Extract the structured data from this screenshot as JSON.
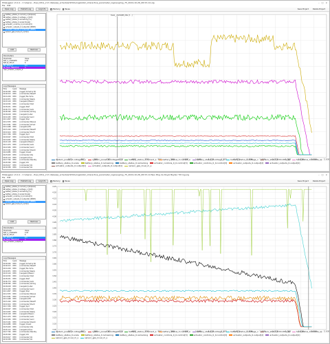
{
  "window1": {
    "title": "PlotJuggler v3.4.1 - C:\\Users\\...\\fuel_Ultra_2.0 \\ Release_scheduler\\PX4\\ulogs\\QGC_interactive_parameter_logs\\Log\\log_75_2024-10-26_08-53-14.ulg",
    "menus": [
      "File",
      "Edit"
    ],
    "toolbar": {
      "open_log": "Open Log",
      "publish_log": "Publish Log",
      "log_info": "Log Info",
      "memory": "Memory",
      "pause": "Pause",
      "save_project": "Save Project",
      "delete_project": "Delete Project"
    },
    "topics": [
      "battery_status_0.current_a [Ampere]",
      "battery_status_0.voltage_v [Volt]",
      "battery_status_0.remaining [%]",
      "battery_status_0.scale [Scale]",
      "actuator_controls_0_0.control[3]",
      "actuator_outputs_0.output[1] [PWM]",
      "actuator_outputs_0.output[2] [PWM]",
      "sensor_gps_0.vel_m_s [m/s]"
    ],
    "selected_topic_index": 6,
    "add_label": "Add",
    "remove_label": "Remove",
    "params_title": "Parameters",
    "params_header": [
      "Parameter",
      "Value"
    ],
    "params": [
      {
        "name": "BAT_V_CHARGED",
        "value": "4.05",
        "color": "#ffffff"
      },
      {
        "name": "BAT_N_CELLS",
        "value": "6",
        "color": "#ffffff"
      },
      {
        "name": "MC_PITCH_P",
        "value": "6.5",
        "color": "#2196f3"
      },
      {
        "name": "RC_MAP_THROTTLE",
        "value": "3",
        "color": "#a020f0"
      },
      {
        "name": "user_actuator_outputs_0",
        "value": "",
        "color": "#ffffff"
      }
    ],
    "logs_title": "Log Messages",
    "logs_header": [
      "Time",
      "Level",
      "Message"
    ],
    "logs": [
      [
        "00:00.000",
        "INFO",
        "[logger] Armed by RC"
      ],
      [
        "00:00.513",
        "INFO",
        "[commander] Takeoff"
      ],
      [
        "00:01.204",
        "INFO",
        "[logger] file: fs/ms"
      ],
      [
        "00:02.871",
        "INFO",
        "[commander] Ready"
      ],
      [
        "00:03.119",
        "INFO",
        "[navigator] Mission"
      ],
      [
        "00:04.552",
        "INFO",
        "[commander] Hold"
      ],
      [
        "00:05.031",
        "INFO",
        "[logger] Start"
      ],
      [
        "00:06.774",
        "INFO",
        "[commander] Auto"
      ],
      [
        "00:08.390",
        "INFO",
        "[commander] Arming"
      ],
      [
        "00:09.018",
        "INFO",
        "[navigator] Loiter"
      ],
      [
        "00:10.245",
        "INFO",
        "[commander] Land"
      ],
      [
        "00:11.807",
        "INFO",
        "[logger] Stop"
      ],
      [
        "00:12.553",
        "INFO",
        "[commander] Manual"
      ],
      [
        "00:13.061",
        "INFO",
        "[commander] Armed"
      ],
      [
        "00:14.498",
        "INFO",
        "[navigator] RTL"
      ],
      [
        "00:15.220",
        "INFO",
        "[commander] Takeoff"
      ],
      [
        "00:16.914",
        "INFO",
        "[commander] Posctl"
      ],
      [
        "00:17.336",
        "INFO",
        "[logger] Sync"
      ],
      [
        "00:18.007",
        "INFO",
        "[commander] Hold"
      ],
      [
        "00:19.652",
        "INFO",
        "[commander] Ready"
      ],
      [
        "00:20.118",
        "INFO",
        "[navigator] Mission"
      ],
      [
        "00:21.470",
        "INFO",
        "[commander] Auto"
      ],
      [
        "00:22.936",
        "INFO",
        "[commander] Land"
      ],
      [
        "00:23.201",
        "INFO",
        "[commander] Disarm"
      ],
      [
        "00:24.885",
        "INFO",
        "[logger] Closed"
      ],
      [
        "00:25.603",
        "INFO",
        "[commander] Idle"
      ],
      [
        "00:26.114",
        "INFO",
        "[navigator] Done"
      ],
      [
        "00:27.790",
        "INFO",
        "[commander] Standby"
      ],
      [
        "00:28.326",
        "INFO",
        "[logger] Info"
      ],
      [
        "00:29.017",
        "INFO",
        "[commander] Ok"
      ],
      [
        "00:30.558",
        "INFO",
        "[commander] Ok"
      ],
      [
        "00:31.402",
        "INFO",
        "[commander] Ok"
      ],
      [
        "00:32.119",
        "INFO",
        "[commander] Ok"
      ],
      [
        "00:33.864",
        "INFO",
        "[commander] Ok"
      ]
    ],
    "cursor_label": "SVA0__QSHOME_PRS [T - ]"
  },
  "window2": {
    "title": "PlotJuggler v3.4.1 - C:\\Users\\...\\fuel_Ultra_2.0 \\ Release_scheduler\\PX4\\ulogs\\QGC_interactive_parameter_logs\\Log\\log_75_2024-10-26_08-53-14 Neo Plug de Royal Baytec Tilt log.ulg",
    "menus": [
      "File",
      "Edit"
    ],
    "toolbar": {
      "open_log": "Open Log",
      "publish_log": "Publish Log",
      "log_info": "Log Info",
      "memory": "Memory",
      "pause": "Pause",
      "save_project": "Save Project",
      "delete_project": "Delete Project"
    },
    "topics": [
      "battery_status_0.current_a [Ampere]",
      "battery_status_0.voltage_v [Volt]",
      "battery_status_0.remaining [%]",
      "battery_status_0.scale [Scale]",
      "actuator_controls_0_0.control[3]",
      "actuator_outputs_0.output[1] [PWM]",
      "actuator_outputs_0.output[2] [PWM]",
      "sensor_gps_0.vel_m_s [m/s]"
    ],
    "selected_topic_index": 6,
    "add_label": "Add",
    "remove_label": "Remove",
    "params_title": "Parameters",
    "params_header": [
      "Parameter",
      "Value"
    ],
    "params": [
      {
        "name": "BAT_V_CHARGED",
        "value": "4.05",
        "color": "#ffffff"
      },
      {
        "name": "BAT_N_CELLS",
        "value": "6",
        "color": "#ffffff"
      },
      {
        "name": "MC_PITCH_P",
        "value": "6.5",
        "color": "#2196f3"
      },
      {
        "name": "RC_MAP_THROTTLE",
        "value": "3",
        "color": "#a020f0"
      },
      {
        "name": "user_actuator_outputs_0",
        "value": "",
        "color": "#ffffff"
      }
    ],
    "logs_title": "Log Messages",
    "logs_header": [
      "Time",
      "Level",
      "Message"
    ],
    "logs": [
      [
        "00:00.000",
        "INFO",
        "[logger] Armed by RC"
      ],
      [
        "00:00.513",
        "INFO",
        "[commander] Takeoff"
      ],
      [
        "00:01.204",
        "INFO",
        "[logger] file: fs/ms"
      ],
      [
        "00:02.871",
        "INFO",
        "[commander] Ready"
      ],
      [
        "00:03.119",
        "INFO",
        "[navigator] Mission"
      ],
      [
        "00:04.552",
        "INFO",
        "[commander] Hold"
      ],
      [
        "00:05.031",
        "INFO",
        "[logger] Start"
      ],
      [
        "00:06.774",
        "INFO",
        "[commander] Auto"
      ],
      [
        "00:08.390",
        "INFO",
        "[commander] Arming"
      ],
      [
        "00:09.018",
        "INFO",
        "[navigator] Loiter"
      ],
      [
        "00:10.245",
        "INFO",
        "[commander] Land"
      ],
      [
        "00:11.807",
        "INFO",
        "[logger] Stop"
      ],
      [
        "00:12.553",
        "INFO",
        "[commander] Manual"
      ],
      [
        "00:13.061",
        "INFO",
        "[commander] Armed"
      ],
      [
        "00:14.498",
        "INFO",
        "[navigator] RTL"
      ],
      [
        "00:15.220",
        "INFO",
        "[commander] Takeoff"
      ],
      [
        "00:16.914",
        "INFO",
        "[commander] Posctl"
      ],
      [
        "00:17.336",
        "INFO",
        "[logger] Sync"
      ],
      [
        "00:18.007",
        "INFO",
        "[commander] Hold"
      ],
      [
        "00:19.652",
        "INFO",
        "[commander] Ready"
      ],
      [
        "00:20.118",
        "INFO",
        "[navigator] Mission"
      ],
      [
        "00:21.470",
        "INFO",
        "[commander] Auto"
      ],
      [
        "00:22.936",
        "INFO",
        "[commander] Land"
      ],
      [
        "00:23.201",
        "INFO",
        "[commander] Disarm"
      ],
      [
        "00:24.885",
        "INFO",
        "[logger] Closed"
      ],
      [
        "00:25.603",
        "INFO",
        "[commander] Idle"
      ],
      [
        "00:26.114",
        "INFO",
        "[navigator] Done"
      ],
      [
        "00:27.790",
        "INFO",
        "[commander] Standby"
      ],
      [
        "00:28.326",
        "INFO",
        "[logger] Info"
      ],
      [
        "00:29.017",
        "INFO",
        "[commander] Ok"
      ],
      [
        "00:30.558",
        "INFO",
        "[commander] Ok"
      ],
      [
        "00:31.402",
        "INFO",
        "[commander] Ok"
      ],
      [
        "00:32.119",
        "INFO",
        "[commander] Ok"
      ],
      [
        "00:33.864",
        "INFO",
        "[commander] Ok"
      ]
    ],
    "cursor_label": ""
  },
  "chart_data": [
    {
      "type": "line",
      "x_ticks": [
        "0",
        "100",
        "200",
        "300",
        "400",
        "500",
        "600",
        "700",
        "800",
        "900",
        "1,000",
        "1,100",
        "1,200",
        "1,300",
        "1,400",
        "1,500",
        "1,600",
        "1,700",
        "1,800",
        "1,900",
        "2,000",
        "2,100"
      ],
      "y_ticks": [],
      "xlim": [
        0,
        2100
      ],
      "grid": true,
      "cursor_x": 470,
      "legend": [
        {
          "name": "system_power_0.voltage5v_v",
          "color": "#1f77b4"
        },
        {
          "name": "system_power_0.voltage5v_v",
          "color": "#d62728"
        },
        {
          "name": "battery_status_0.current_a",
          "color": "#2ca02c"
        },
        {
          "name": "battery_status_0.current_a",
          "color": "#ff7f0e"
        },
        {
          "name": "battery_status_0.voltage_v",
          "color": "#9467bd"
        },
        {
          "name": "battery_status_0.voltage_v",
          "color": "#17becf"
        },
        {
          "name": "tecs_status_0.throttle_sp",
          "color": "#8c564b"
        },
        {
          "name": "tecs_status_0.throttle_sp",
          "color": "#e377c2"
        },
        {
          "name": "battery_status_0.scale",
          "color": "#7f7f7f"
        },
        {
          "name": "battery_status_0.remaining",
          "color": "#bcbd22"
        },
        {
          "name": "battery_status_0.remaining",
          "color": "#1f77b4"
        },
        {
          "name": "actuator_controls_0_0.control[3]",
          "color": "#d62728"
        },
        {
          "name": "actuator_controls_0_0.control[3]",
          "color": "#2ca02c"
        },
        {
          "name": "actuator_outputs_0.output[2]",
          "color": "#ff7f0e"
        },
        {
          "name": "actuator_outputs_0.output[2]",
          "color": "#9467bd"
        },
        {
          "name": "actuator_outputs_0.output[1]",
          "color": "#8c564b"
        },
        {
          "name": "actuator_outputs_0.output[1]",
          "color": "#e377c2"
        },
        {
          "name": "sensor_gps_0.vel_m_s",
          "color": "#bcbd22"
        }
      ],
      "series": [
        {
          "color": "#ccaa00",
          "base": 0.78,
          "noise": 0.06,
          "style": "gold"
        },
        {
          "color": "#cc00cc",
          "base": 0.53,
          "noise": 0.025,
          "style": "magenta"
        },
        {
          "color": "#00cc00",
          "base": 0.28,
          "noise": 0.04,
          "style": "green"
        },
        {
          "color": "#00cc00",
          "base": 0.08,
          "noise": 0.01,
          "style": "greenlow"
        },
        {
          "color": "#1f4fd0",
          "base": 0.12,
          "noise": 0.005,
          "style": "flat"
        },
        {
          "color": "#d62728",
          "base": 0.15,
          "noise": 0.005,
          "style": "flat"
        },
        {
          "color": "#17becf",
          "base": 0.1,
          "noise": 0.003,
          "style": "flat"
        }
      ]
    },
    {
      "type": "line",
      "x_ticks": [
        "0",
        "100",
        "200",
        "300",
        "400",
        "500",
        "600",
        "700",
        "800",
        "900",
        "1,000",
        "1,100",
        "1,200",
        "1,300",
        "1,400",
        "1,500",
        "1,600",
        "1,700",
        "1,800",
        "1,900",
        "2,000",
        "2,100"
      ],
      "y_ticks": [
        "4.25",
        "4.20",
        "4.15",
        "4.10",
        "4.05",
        "4.00",
        "3.95",
        "3.90",
        "3.85",
        "3.80",
        "3.75",
        "3.70",
        "3.65",
        "3.60",
        "3.55",
        "3.50",
        "3.45",
        "3.40",
        "3.35",
        "3.30",
        "3.25",
        "3.20",
        "3.15",
        "3.10",
        "3.05"
      ],
      "xlim": [
        0,
        2100
      ],
      "grid": true,
      "cursor_x": 1960,
      "legend": [
        {
          "name": "system_power_0.voltage5v_v",
          "color": "#1f77b4"
        },
        {
          "name": "system_power_0.voltage5v_v",
          "color": "#d62728"
        },
        {
          "name": "battery_status_0.current_a",
          "color": "#2ca02c"
        },
        {
          "name": "battery_status_0.current_a",
          "color": "#ff7f0e"
        },
        {
          "name": "battery_status_0.voltage_v",
          "color": "#9467bd"
        },
        {
          "name": "battery_status_0.voltage_v",
          "color": "#17becf"
        },
        {
          "name": "tecs_status_0.throttle_sp",
          "color": "#8c564b"
        },
        {
          "name": "tecs_status_0.throttle_sp",
          "color": "#e377c2"
        },
        {
          "name": "battery_status_0.scale",
          "color": "#7f7f7f"
        },
        {
          "name": "battery_status_0.remaining",
          "color": "#bcbd22"
        },
        {
          "name": "battery_status_0.remaining",
          "color": "#1f77b4"
        },
        {
          "name": "actuator_controls_0_0.control[3]",
          "color": "#d62728"
        },
        {
          "name": "actuator_controls_0_0.control[3]",
          "color": "#2ca02c"
        },
        {
          "name": "actuator_outputs_0.output[2]",
          "color": "#ff7f0e"
        },
        {
          "name": "actuator_outputs_0.output[2]",
          "color": "#9467bd"
        },
        {
          "name": "sensor_gps_0.vel_m_s",
          "color": "#bcbd22"
        },
        {
          "name": "sensor_gps_0.vel_m_s",
          "color": "#17becf"
        }
      ],
      "series": [
        {
          "color": "#40d0d0",
          "base": 0.82,
          "noise": 0.02,
          "style": "rising"
        },
        {
          "color": "#000000",
          "base": 0.6,
          "noise": 0.03,
          "style": "falling"
        },
        {
          "color": "#e08a00",
          "base": 0.22,
          "noise": 0.03,
          "style": "flatnoisy"
        },
        {
          "color": "#cc0000",
          "base": 0.2,
          "noise": 0.02,
          "style": "flatnoisy"
        },
        {
          "color": "#80c000",
          "base": 0.95,
          "noise": 0.0,
          "style": "spikes"
        },
        {
          "color": "#17becf",
          "base": 0.27,
          "noise": 0.01,
          "style": "flat"
        }
      ]
    }
  ]
}
